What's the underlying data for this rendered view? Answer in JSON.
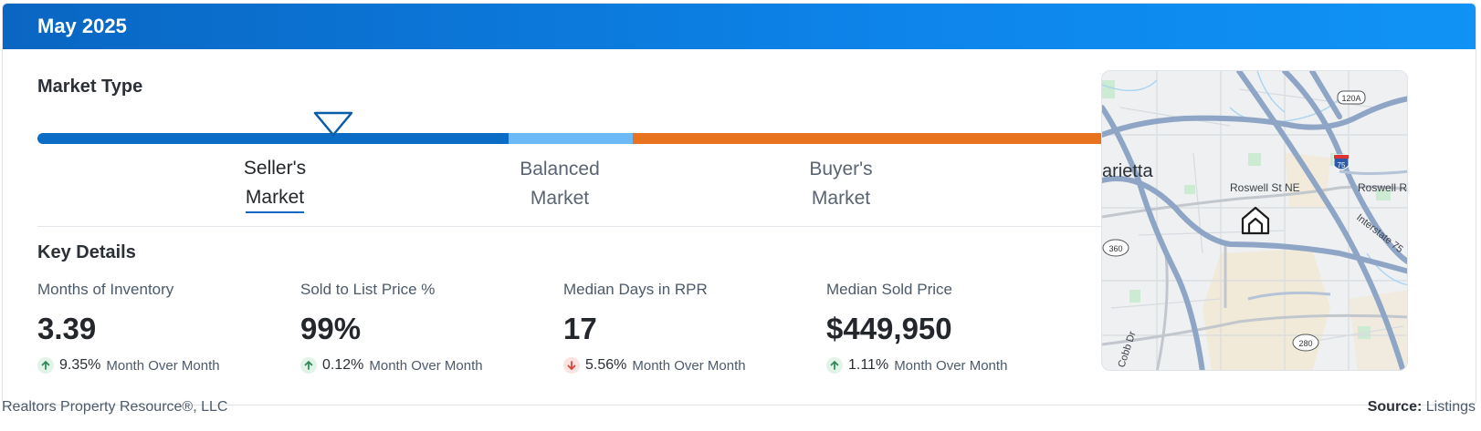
{
  "header": {
    "title": "May 2025"
  },
  "market_type": {
    "title": "Market Type",
    "labels": {
      "seller_line1": "Seller's",
      "seller_line2": "Market",
      "balanced_line1": "Balanced",
      "balanced_line2": "Market",
      "buyer_line1": "Buyer's",
      "buyer_line2": "Market"
    },
    "active": "seller",
    "colors": {
      "seller": "#0a6cc4",
      "balanced": "#6cb9f5",
      "buyer": "#e8731f"
    }
  },
  "key_details": {
    "title": "Key Details",
    "metrics": [
      {
        "label": "Months of Inventory",
        "value": "3.39",
        "direction": "up",
        "change": "9.35%",
        "change_text": "Month Over Month"
      },
      {
        "label": "Sold to List Price %",
        "value": "99%",
        "direction": "up",
        "change": "0.12%",
        "change_text": "Month Over Month"
      },
      {
        "label": "Median Days in RPR",
        "value": "17",
        "direction": "down",
        "change": "5.56%",
        "change_text": "Month Over Month"
      },
      {
        "label": "Median Sold Price",
        "value": "$449,950",
        "direction": "up",
        "change": "1.11%",
        "change_text": "Month Over Month"
      }
    ]
  },
  "map": {
    "city_label": "arietta",
    "street_1": "Roswell St NE",
    "street_2": "Roswell R",
    "interstate_label": "Interstate 75",
    "road_cobb": "Cobb Dr",
    "shield_360": "360",
    "shield_280": "280",
    "shield_120a": "120A",
    "shield_75": "75",
    "icon": "home-icon"
  },
  "footer": {
    "left": "Realtors Property Resource®, LLC",
    "source_label": "Source:",
    "source_value": "Listings"
  }
}
